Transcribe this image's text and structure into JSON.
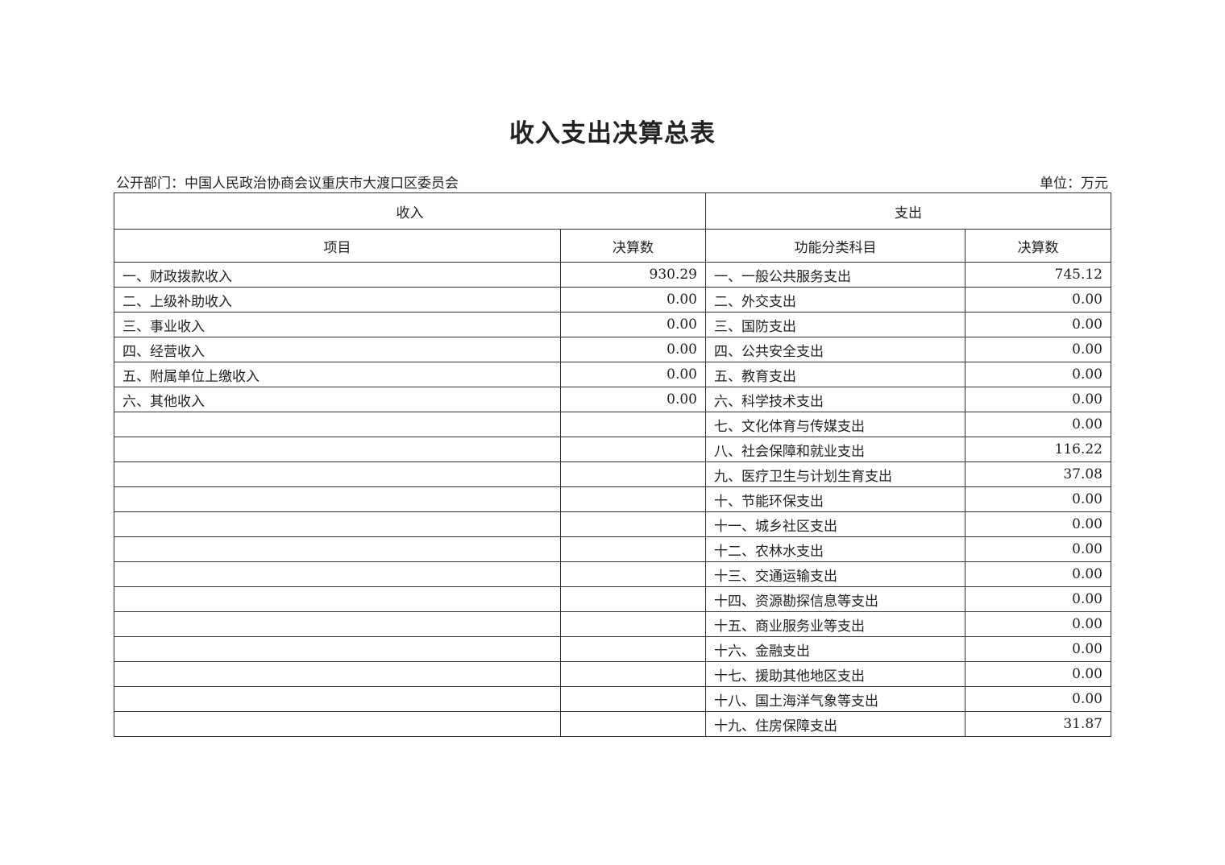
{
  "title": "收入支出决算总表",
  "department": "公开部门：中国人民政治协商会议重庆市大渡口区委员会",
  "unit": "单位：万元",
  "headers": {
    "income": "收入",
    "expense": "支出",
    "item": "项目",
    "amount": "决算数",
    "category": "功能分类科目",
    "amount2": "决算数"
  },
  "income": [
    {
      "label": "一、财政拨款收入",
      "value": "930.29"
    },
    {
      "label": "二、上级补助收入",
      "value": "0.00"
    },
    {
      "label": "三、事业收入",
      "value": "0.00"
    },
    {
      "label": "四、经营收入",
      "value": "0.00"
    },
    {
      "label": "五、附属单位上缴收入",
      "value": "0.00"
    },
    {
      "label": "六、其他收入",
      "value": "0.00"
    }
  ],
  "expense": [
    {
      "label": "一、一般公共服务支出",
      "value": "745.12"
    },
    {
      "label": "二、外交支出",
      "value": "0.00"
    },
    {
      "label": "三、国防支出",
      "value": "0.00"
    },
    {
      "label": "四、公共安全支出",
      "value": "0.00"
    },
    {
      "label": "五、教育支出",
      "value": "0.00"
    },
    {
      "label": "六、科学技术支出",
      "value": "0.00"
    },
    {
      "label": "七、文化体育与传媒支出",
      "value": "0.00"
    },
    {
      "label": "八、社会保障和就业支出",
      "value": "116.22"
    },
    {
      "label": "九、医疗卫生与计划生育支出",
      "value": "37.08"
    },
    {
      "label": "十、节能环保支出",
      "value": "0.00"
    },
    {
      "label": "十一、城乡社区支出",
      "value": "0.00"
    },
    {
      "label": "十二、农林水支出",
      "value": "0.00"
    },
    {
      "label": "十三、交通运输支出",
      "value": "0.00"
    },
    {
      "label": "十四、资源勘探信息等支出",
      "value": "0.00"
    },
    {
      "label": "十五、商业服务业等支出",
      "value": "0.00"
    },
    {
      "label": "十六、金融支出",
      "value": "0.00"
    },
    {
      "label": "十七、援助其他地区支出",
      "value": "0.00"
    },
    {
      "label": "十八、国土海洋气象等支出",
      "value": "0.00"
    },
    {
      "label": "十九、住房保障支出",
      "value": "31.87"
    }
  ]
}
